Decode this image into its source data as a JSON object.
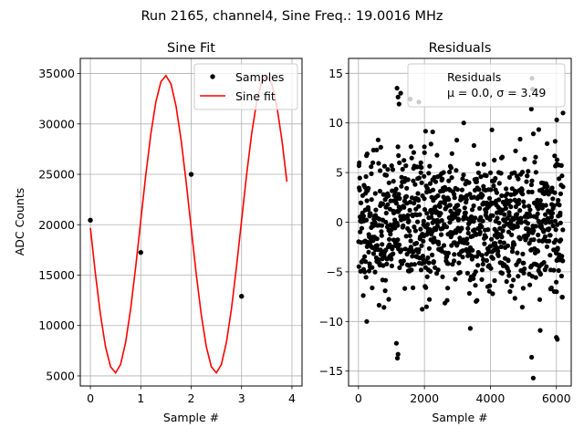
{
  "suptitle": "Run 2165, channel4, Sine Freq.: 19.0016 MHz",
  "chart_data": [
    {
      "type": "line",
      "title": "Sine Fit",
      "xlabel": "Sample #",
      "ylabel": "ADC Counts",
      "xlim": [
        -0.2,
        4.2
      ],
      "ylim": [
        4000,
        36500
      ],
      "xticks": [
        0,
        1,
        2,
        3,
        4
      ],
      "yticks": [
        5000,
        10000,
        15000,
        20000,
        25000,
        30000,
        35000
      ],
      "grid": true,
      "legend_placement": "top-right",
      "series": [
        {
          "name": "Samples",
          "style": "points",
          "color": "#000000",
          "x": [
            0,
            1,
            2,
            3
          ],
          "y": [
            20450,
            17250,
            25000,
            12900
          ]
        },
        {
          "name": "Sine fit",
          "style": "line",
          "color": "#ff0000",
          "model": {
            "offset": 20050,
            "amplitude": 14750,
            "period_samples": 2.0,
            "phase_rad": 0.025
          },
          "x_range": [
            0,
            3.9
          ]
        }
      ]
    },
    {
      "type": "scatter",
      "title": "Residuals",
      "xlabel": "Sample #",
      "ylabel": "",
      "xlim": [
        -300,
        6450
      ],
      "ylim": [
        -16.5,
        16.5
      ],
      "xticks": [
        0,
        2000,
        4000,
        6000
      ],
      "yticks": [
        -15,
        -10,
        -5,
        0,
        5,
        10,
        15
      ],
      "grid": true,
      "legend_placement": "top-right",
      "legend_lines": [
        "Residuals",
        "μ = 0.0, σ = 3.49"
      ],
      "series": [
        {
          "name": "Residuals",
          "color": "#000000",
          "n_points": 6200,
          "x_range": [
            0,
            6200
          ],
          "mean": 0.0,
          "std": 3.49,
          "outliers": [
            [
              1170,
              13.5
            ],
            [
              1200,
              12.6
            ],
            [
              1230,
              11.9
            ],
            [
              1280,
              13.0
            ],
            [
              1570,
              12.4
            ],
            [
              1830,
              12.1
            ],
            [
              1180,
              -13.7
            ],
            [
              1200,
              -13.3
            ],
            [
              1150,
              -12.2
            ],
            [
              5260,
              14.5
            ],
            [
              5280,
              13.4
            ],
            [
              5300,
              -15.7
            ],
            [
              5250,
              -13.6
            ],
            [
              5240,
              11.4
            ],
            [
              6010,
              10.3
            ],
            [
              6200,
              11.0
            ],
            [
              6030,
              -11.8
            ],
            [
              6000,
              -11.6
            ],
            [
              5510,
              -10.9
            ],
            [
              3190,
              10.0
            ],
            [
              3390,
              -10.7
            ],
            [
              2250,
              9.1
            ],
            [
              250,
              -10.0
            ],
            [
              2000,
              7.6
            ]
          ]
        }
      ]
    }
  ]
}
